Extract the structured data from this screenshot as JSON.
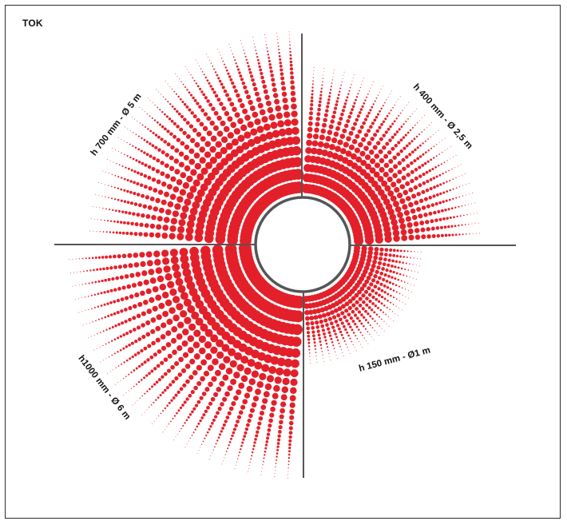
{
  "brand": "TOK",
  "colors": {
    "dot": "#e3202a",
    "axis": "#555555",
    "ring": "#555555",
    "text": "#111111"
  },
  "quadrants": [
    {
      "id": "top-left",
      "label": "h 700 mm - Ø 5 m",
      "reach": 5,
      "height_mm": 700
    },
    {
      "id": "top-right",
      "label": "h 400 mm - Ø 2,5 m",
      "reach": 2.5,
      "height_mm": 400
    },
    {
      "id": "bottom-right",
      "label": "h 150 mm - Ø1 m",
      "reach": 1,
      "height_mm": 150
    },
    {
      "id": "bottom-left",
      "label": "h1000 mm - Ø 6 m",
      "reach": 6,
      "height_mm": 1000
    }
  ]
}
